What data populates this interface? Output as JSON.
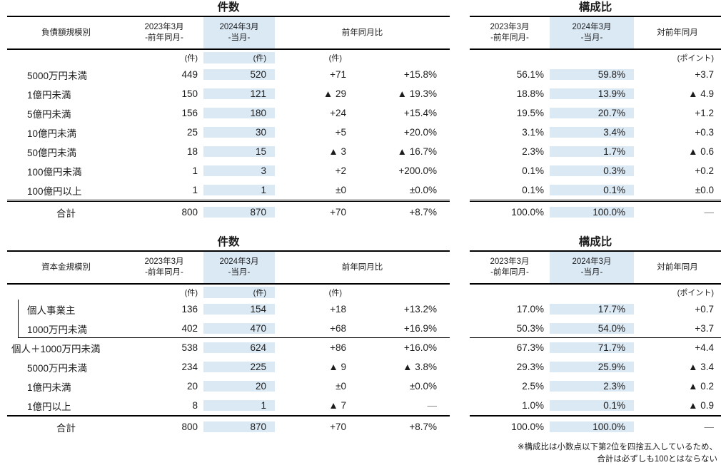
{
  "colors": {
    "highlight_column": "#dbe9f5",
    "rule": "#000000",
    "text": "#1c1c1c",
    "muted_dash": "#808080"
  },
  "note": {
    "line1": "※構成比は小数点以下第2位を四捨五入しているため、",
    "line2": "合計は必ずしも100とはならない"
  },
  "tables": {
    "debt_count": {
      "title": "件数",
      "row_header": "負債額規模別",
      "col1": {
        "line1": "2023年3月",
        "line2": "-前年同月-"
      },
      "col2": {
        "line1": "2024年3月",
        "line2": "-当月-"
      },
      "col3": "前年同月比",
      "units": {
        "c1": "(件)",
        "c2": "(件)",
        "diff": "(件)"
      },
      "rows": [
        {
          "label": "5000万円未満",
          "c1": "449",
          "c2": "520",
          "diff": "+71",
          "pct": "+15.8%"
        },
        {
          "label": "1億円未満",
          "c1": "150",
          "c2": "121",
          "diff": "▲ 29",
          "pct": "▲ 19.3%"
        },
        {
          "label": "5億円未満",
          "c1": "156",
          "c2": "180",
          "diff": "+24",
          "pct": "+15.4%"
        },
        {
          "label": "10億円未満",
          "c1": "25",
          "c2": "30",
          "diff": "+5",
          "pct": "+20.0%"
        },
        {
          "label": "50億円未満",
          "c1": "18",
          "c2": "15",
          "diff": "▲ 3",
          "pct": "▲ 16.7%"
        },
        {
          "label": "100億円未満",
          "c1": "1",
          "c2": "3",
          "diff": "+2",
          "pct": "+200.0%"
        },
        {
          "label": "100億円以上",
          "c1": "1",
          "c2": "1",
          "diff": "±0",
          "pct": "±0.0%"
        }
      ],
      "total": {
        "label": "合計",
        "c1": "800",
        "c2": "870",
        "diff": "+70",
        "pct": "+8.7%"
      }
    },
    "debt_share": {
      "title": "構成比",
      "col1": {
        "line1": "2023年3月",
        "line2": "-前年同月-"
      },
      "col2": {
        "line1": "2024年3月",
        "line2": "-当月-"
      },
      "col3": "対前年同月",
      "units": {
        "diff": "(ポイント)"
      },
      "rows": [
        {
          "c1": "56.1%",
          "c2": "59.8%",
          "diff": "+3.7"
        },
        {
          "c1": "18.8%",
          "c2": "13.9%",
          "diff": "▲ 4.9"
        },
        {
          "c1": "19.5%",
          "c2": "20.7%",
          "diff": "+1.2"
        },
        {
          "c1": "3.1%",
          "c2": "3.4%",
          "diff": "+0.3"
        },
        {
          "c1": "2.3%",
          "c2": "1.7%",
          "diff": "▲ 0.6"
        },
        {
          "c1": "0.1%",
          "c2": "0.3%",
          "diff": "+0.2"
        },
        {
          "c1": "0.1%",
          "c2": "0.1%",
          "diff": "±0.0"
        }
      ],
      "total": {
        "c1": "100.0%",
        "c2": "100.0%",
        "diff": "—"
      }
    },
    "capital_count": {
      "title": "件数",
      "row_header": "資本金規模別",
      "col1": {
        "line1": "2023年3月",
        "line2": "-前年同月-"
      },
      "col2": {
        "line1": "2024年3月",
        "line2": "-当月-"
      },
      "col3": "前年同月比",
      "units": {
        "c1": "(件)",
        "c2": "(件)",
        "diff": "(件)"
      },
      "rows": [
        {
          "label": "個人事業主",
          "c1": "136",
          "c2": "154",
          "diff": "+18",
          "pct": "+13.2%",
          "row_class": "bracket"
        },
        {
          "label": "1000万円未満",
          "c1": "402",
          "c2": "470",
          "diff": "+68",
          "pct": "+16.9%",
          "row_class": "bracket groupend"
        },
        {
          "label": "個人＋1000万円未満",
          "c1": "538",
          "c2": "624",
          "diff": "+86",
          "pct": "+16.0%",
          "row_class": "flush"
        },
        {
          "label": "5000万円未満",
          "c1": "234",
          "c2": "225",
          "diff": "▲ 9",
          "pct": "▲ 3.8%"
        },
        {
          "label": "1億円未満",
          "c1": "20",
          "c2": "20",
          "diff": "±0",
          "pct": "±0.0%"
        },
        {
          "label": "1億円以上",
          "c1": "8",
          "c2": "1",
          "diff": "▲ 7",
          "pct": "—"
        }
      ],
      "total": {
        "label": "合計",
        "c1": "800",
        "c2": "870",
        "diff": "+70",
        "pct": "+8.7%"
      }
    },
    "capital_share": {
      "title": "構成比",
      "col1": {
        "line1": "2023年3月",
        "line2": "-前年同月-"
      },
      "col2": {
        "line1": "2024年3月",
        "line2": "-当月-"
      },
      "col3": "対前年同月",
      "units": {
        "diff": "(ポイント)"
      },
      "rows": [
        {
          "c1": "17.0%",
          "c2": "17.7%",
          "diff": "+0.7"
        },
        {
          "c1": "50.3%",
          "c2": "54.0%",
          "diff": "+3.7",
          "row_class": "groupend"
        },
        {
          "c1": "67.3%",
          "c2": "71.7%",
          "diff": "+4.4"
        },
        {
          "c1": "29.3%",
          "c2": "25.9%",
          "diff": "▲ 3.4"
        },
        {
          "c1": "2.5%",
          "c2": "2.3%",
          "diff": "▲ 0.2"
        },
        {
          "c1": "1.0%",
          "c2": "0.1%",
          "diff": "▲ 0.9"
        }
      ],
      "total": {
        "c1": "100.0%",
        "c2": "100.0%",
        "diff": "—"
      }
    }
  }
}
